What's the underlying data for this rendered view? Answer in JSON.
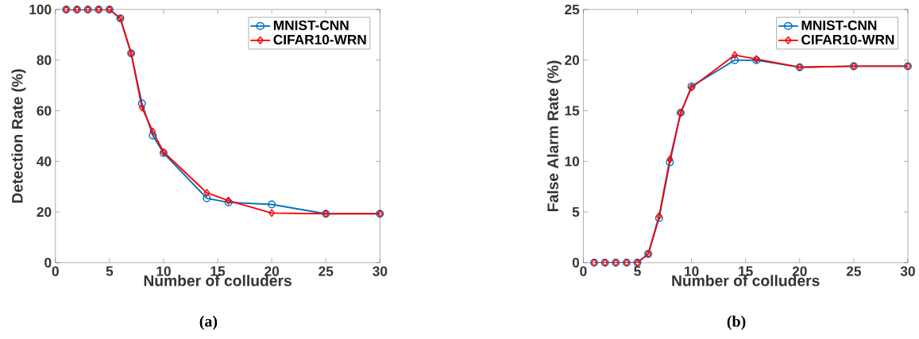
{
  "chart_data": [
    {
      "type": "line",
      "xlabel": "Number of colluders",
      "ylabel": "Detection Rate (%)",
      "annotations": [
        "(a)"
      ],
      "x": [
        1,
        2,
        3,
        4,
        5,
        6,
        7,
        8,
        9,
        10,
        14,
        16,
        20,
        25,
        30
      ],
      "xlim": [
        0,
        30
      ],
      "xticks": [
        0,
        5,
        10,
        15,
        20,
        25,
        30
      ],
      "ylim": [
        0,
        100
      ],
      "yticks": [
        0,
        20,
        40,
        60,
        80,
        100
      ],
      "legend": "top right",
      "grid": false,
      "series": [
        {
          "name": "MNIST-CNN",
          "color": "#0072bd",
          "marker": "circle",
          "values": [
            100,
            100,
            100,
            100,
            100,
            96.5,
            82.7,
            62.9,
            50.2,
            43.3,
            25.4,
            23.8,
            23.0,
            19.3,
            19.3
          ]
        },
        {
          "name": "CIFAR10-WRN",
          "color": "#ff0000",
          "marker": "diamond",
          "values": [
            100,
            100,
            100,
            100,
            100,
            96.5,
            82.7,
            61.3,
            51.8,
            43.7,
            27.6,
            24.5,
            19.6,
            19.3,
            19.3
          ]
        }
      ]
    },
    {
      "type": "line",
      "xlabel": "Number of colluders",
      "ylabel": "False Alarm Rate (%)",
      "annotations": [
        "(b)"
      ],
      "x": [
        1,
        2,
        3,
        4,
        5,
        6,
        7,
        8,
        9,
        10,
        14,
        16,
        20,
        25,
        30
      ],
      "xlim": [
        0,
        30
      ],
      "xticks": [
        0,
        5,
        10,
        15,
        20,
        25,
        30
      ],
      "ylim": [
        0,
        25
      ],
      "yticks": [
        0,
        5,
        10,
        15,
        20,
        25
      ],
      "legend": "top right",
      "grid": false,
      "series": [
        {
          "name": "MNIST-CNN",
          "color": "#0072bd",
          "marker": "circle",
          "values": [
            0,
            0,
            0,
            0,
            0,
            0.86,
            4.4,
            9.9,
            14.8,
            17.4,
            20.0,
            20.0,
            19.3,
            19.4,
            19.4
          ]
        },
        {
          "name": "CIFAR10-WRN",
          "color": "#ff0000",
          "marker": "diamond",
          "values": [
            0,
            0,
            0,
            0,
            0,
            0.86,
            4.6,
            10.2,
            14.8,
            17.3,
            20.5,
            20.1,
            19.3,
            19.4,
            19.4
          ]
        }
      ]
    }
  ]
}
